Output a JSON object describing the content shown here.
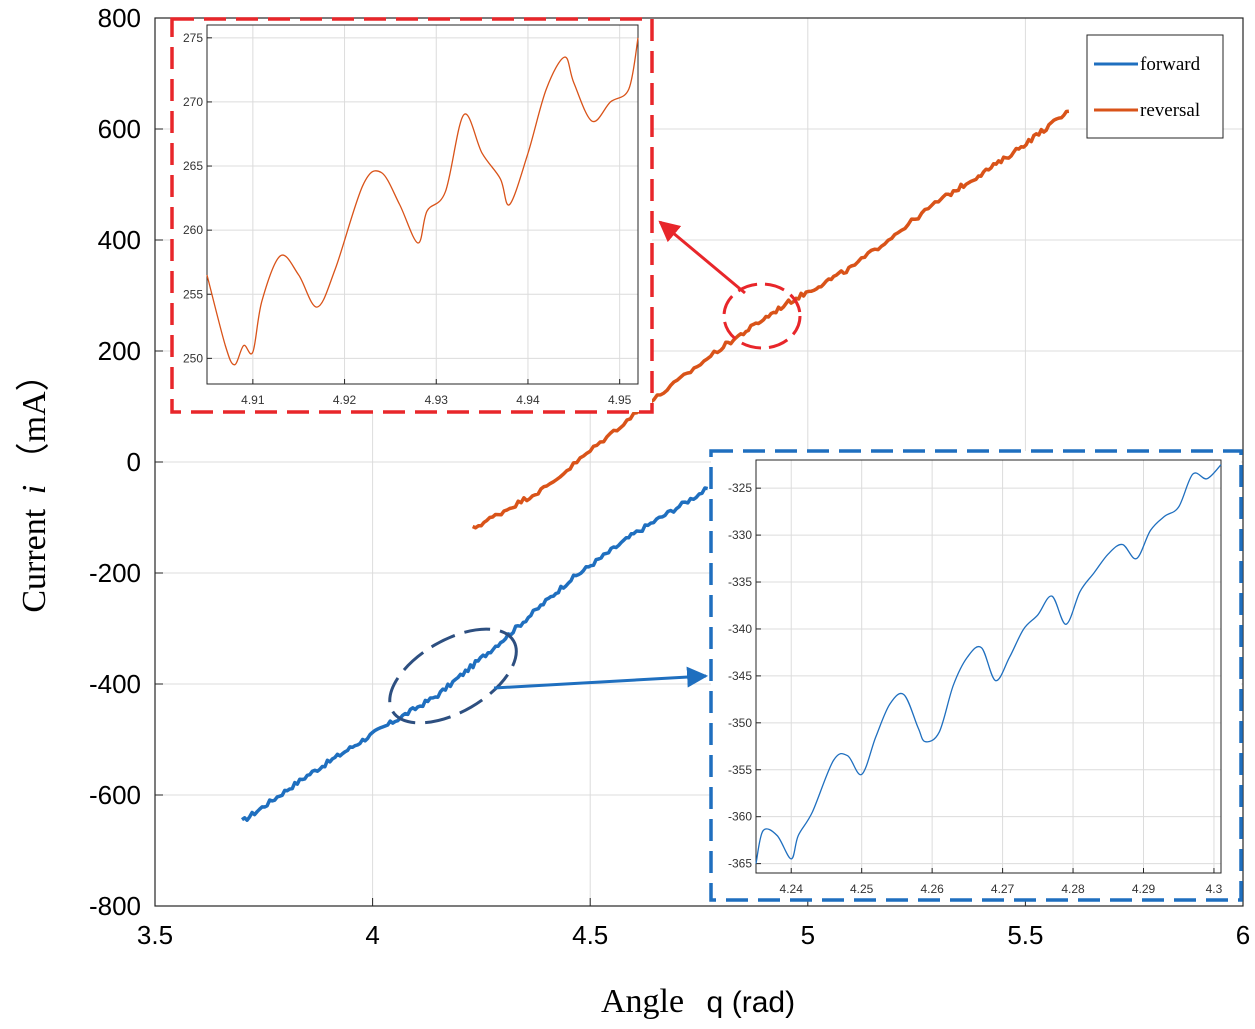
{
  "chart_data": [
    {
      "id": "main",
      "type": "line",
      "xlabel_text": "Angle",
      "xlabel_symbol": "q",
      "xlabel_unit": "(rad)",
      "ylabel_text": "Current",
      "ylabel_symbol": "i",
      "ylabel_unit": "（mA）",
      "xlim": [
        3.5,
        6
      ],
      "ylim": [
        -800,
        800
      ],
      "x_ticks": [
        3.5,
        4,
        4.5,
        5,
        5.5,
        6
      ],
      "x_tick_labels": [
        "3.5",
        "4",
        "4.5",
        "5",
        "5.5",
        "6"
      ],
      "y_ticks": [
        -800,
        -600,
        -400,
        -200,
        0,
        200,
        400,
        600,
        800
      ],
      "y_tick_labels": [
        "-800",
        "-600",
        "-400",
        "-200",
        "0",
        "200",
        "400",
        "600",
        "800"
      ],
      "grid": true,
      "legend_position": "top-right",
      "series": [
        {
          "name": "forward",
          "color": "#1f6fbf",
          "x": [
            3.7,
            3.85,
            4.0,
            4.15,
            4.3,
            4.45,
            4.6,
            4.77
          ],
          "y": [
            -648,
            -565,
            -490,
            -420,
            -320,
            -215,
            -130,
            -48
          ]
        },
        {
          "name": "reversal",
          "color": "#d95319",
          "x": [
            4.23,
            4.4,
            4.6,
            4.8,
            4.95,
            5.1,
            5.3,
            5.45,
            5.6
          ],
          "y": [
            -120,
            -45,
            85,
            205,
            285,
            350,
            470,
            545,
            632
          ]
        }
      ]
    },
    {
      "id": "inset-reversal",
      "type": "line",
      "color": "#d95319",
      "xlim": [
        4.905,
        4.952
      ],
      "ylim": [
        248,
        276
      ],
      "x_ticks": [
        4.91,
        4.92,
        4.93,
        4.94,
        4.95
      ],
      "x_tick_labels": [
        "4.91",
        "4.92",
        "4.93",
        "4.94",
        "4.95"
      ],
      "y_ticks": [
        250,
        255,
        260,
        265,
        270,
        275
      ],
      "y_tick_labels": [
        "250",
        "255",
        "260",
        "265",
        "270",
        "275"
      ],
      "grid": true,
      "x": [
        4.905,
        4.907,
        4.908,
        4.909,
        4.91,
        4.911,
        4.913,
        4.915,
        4.917,
        4.919,
        4.922,
        4.924,
        4.926,
        4.928,
        4.929,
        4.931,
        4.933,
        4.935,
        4.937,
        4.938,
        4.94,
        4.942,
        4.944,
        4.945,
        4.947,
        4.949,
        4.951,
        4.952
      ],
      "y": [
        256.5,
        251.0,
        249.5,
        251.0,
        250.5,
        254.5,
        258.0,
        256.5,
        254.0,
        257.0,
        263.5,
        264.5,
        262.0,
        259.0,
        261.5,
        263.0,
        269.0,
        266.0,
        264.0,
        262.0,
        266.0,
        271.0,
        273.5,
        271.5,
        268.5,
        270.0,
        271.0,
        275.0
      ]
    },
    {
      "id": "inset-forward",
      "type": "line",
      "color": "#1f6fbf",
      "xlim": [
        4.235,
        4.301
      ],
      "ylim": [
        -366,
        -322
      ],
      "x_ticks": [
        4.24,
        4.25,
        4.26,
        4.27,
        4.28,
        4.29,
        4.3
      ],
      "x_tick_labels": [
        "4.24",
        "4.25",
        "4.26",
        "4.27",
        "4.28",
        "4.29",
        "4.3"
      ],
      "y_ticks": [
        -365,
        -360,
        -355,
        -350,
        -345,
        -340,
        -335,
        -330,
        -325
      ],
      "y_tick_labels": [
        "-365",
        "-360",
        "-355",
        "-350",
        "-345",
        "-340",
        "-335",
        "-330",
        "-325"
      ],
      "grid": true,
      "x": [
        4.235,
        4.236,
        4.238,
        4.24,
        4.241,
        4.243,
        4.246,
        4.248,
        4.25,
        4.252,
        4.254,
        4.256,
        4.258,
        4.259,
        4.261,
        4.263,
        4.265,
        4.267,
        4.269,
        4.271,
        4.273,
        4.275,
        4.277,
        4.279,
        4.281,
        4.283,
        4.285,
        4.287,
        4.289,
        4.291,
        4.293,
        4.295,
        4.297,
        4.299,
        4.301
      ],
      "y": [
        -365.0,
        -361.5,
        -362.0,
        -364.5,
        -362.0,
        -359.5,
        -354.0,
        -353.5,
        -355.5,
        -351.5,
        -348.0,
        -347.0,
        -350.5,
        -352.0,
        -351.0,
        -346.0,
        -343.0,
        -342.0,
        -345.5,
        -343.0,
        -340.0,
        -338.5,
        -336.5,
        -339.5,
        -336.0,
        -334.0,
        -332.0,
        -331.0,
        -332.5,
        -329.5,
        -328.0,
        -327.0,
        -323.5,
        -324.0,
        -322.5
      ]
    }
  ]
}
